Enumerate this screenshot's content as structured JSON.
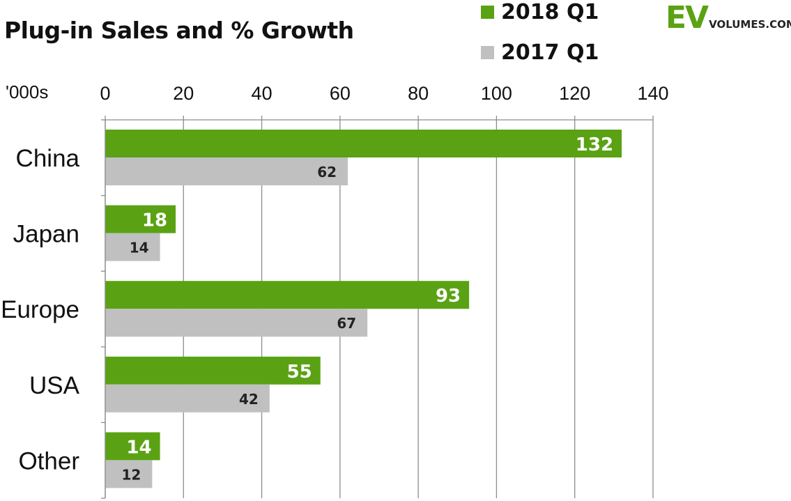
{
  "header": {
    "title": "Plug-in Sales and % Growth",
    "logo_ev": "EV",
    "logo_domain": "VOLUMES.COM",
    "logo_color": "#5aa213"
  },
  "chart_data": {
    "type": "bar",
    "orientation": "horizontal",
    "title": "Plug-in Sales and % Growth",
    "unit_label": "'000s",
    "categories": [
      "China",
      "Japan",
      "Europe",
      "USA",
      "Other"
    ],
    "series": [
      {
        "name": "2018 Q1",
        "color": "#5aa213",
        "label_color": "#ffffff",
        "values": [
          132,
          18,
          93,
          55,
          14
        ]
      },
      {
        "name": "2017 Q1",
        "color": "#c0c0c0",
        "label_color": "#222222",
        "values": [
          62,
          14,
          67,
          42,
          12
        ]
      }
    ],
    "xlim": [
      0,
      140
    ],
    "xticks": [
      0,
      20,
      40,
      60,
      80,
      100,
      120,
      140
    ],
    "grid": true,
    "legend_position": "top"
  }
}
